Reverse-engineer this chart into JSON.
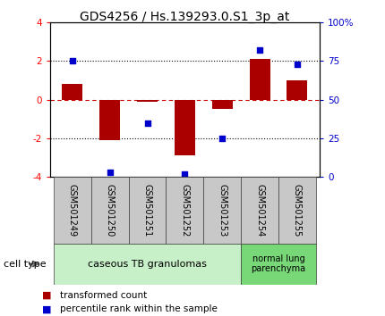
{
  "title": "GDS4256 / Hs.139293.0.S1_3p_at",
  "samples": [
    "GSM501249",
    "GSM501250",
    "GSM501251",
    "GSM501252",
    "GSM501253",
    "GSM501254",
    "GSM501255"
  ],
  "red_bars": [
    0.8,
    -2.1,
    -0.1,
    -2.9,
    -0.5,
    2.1,
    1.0
  ],
  "blue_dots_pct": [
    75,
    3,
    35,
    2,
    25,
    82,
    73
  ],
  "ylim_left": [
    -4,
    4
  ],
  "ylim_right": [
    0,
    100
  ],
  "left_ticks": [
    -4,
    -2,
    0,
    2,
    4
  ],
  "right_ticks": [
    0,
    25,
    50,
    75,
    100
  ],
  "right_tick_labels": [
    "0",
    "25",
    "50",
    "75",
    "100%"
  ],
  "bar_color": "#aa0000",
  "dot_color": "#0000cc",
  "hline_color": "#cc0000",
  "dotted_line_color": "#000000",
  "group1_label": "caseous TB granulomas",
  "group2_label": "normal lung\nparenchyma",
  "group1_indices": [
    0,
    1,
    2,
    3,
    4
  ],
  "group2_indices": [
    5,
    6
  ],
  "group1_color": "#c8f0c8",
  "group2_color": "#78d878",
  "cell_type_label": "cell type",
  "legend_red": "transformed count",
  "legend_blue": "percentile rank within the sample",
  "bar_width": 0.55,
  "title_fontsize": 10,
  "tick_fontsize": 7.5,
  "sample_fontsize": 7,
  "legend_fontsize": 7.5
}
